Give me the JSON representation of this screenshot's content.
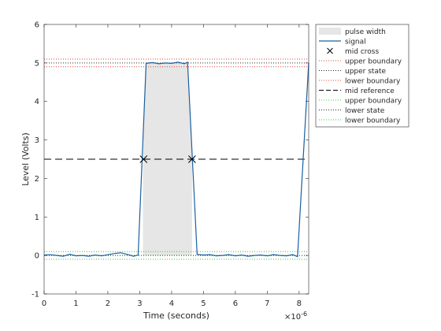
{
  "chart_data": {
    "type": "line",
    "title": "",
    "xlabel": "Time (seconds)",
    "ylabel": "Level (Volts)",
    "x_exponent_label": "×10",
    "x_exponent_power": "-6",
    "x_scale": 1e-06,
    "xlim": [
      0,
      8.3
    ],
    "ylim": [
      -1,
      6
    ],
    "xticks": [
      0,
      1,
      2,
      3,
      4,
      5,
      6,
      7,
      8
    ],
    "yticks": [
      -1,
      0,
      1,
      2,
      3,
      4,
      5,
      6
    ],
    "grid": false,
    "legend_position": "outside-top-right",
    "colors": {
      "signal": "#1a5fa0",
      "pulse_fill": "#e6e6e6",
      "upper_boundary": "#e8423c",
      "state": "#262626",
      "lower_boundary": "#3cc43c",
      "mid_reference": "#000000",
      "mid_cross": "#000000"
    },
    "pulse_width": {
      "x_start": 3.1,
      "x_end": 4.64
    },
    "levels": {
      "upper_state": 5.0,
      "upper_state_upper_boundary": 5.1,
      "upper_state_lower_boundary": 4.9,
      "mid_reference": 2.5,
      "lower_state": 0.0,
      "lower_state_upper_boundary": 0.1,
      "lower_state_lower_boundary": -0.1
    },
    "mid_crosses": [
      {
        "x": 3.12,
        "y": 2.5
      },
      {
        "x": 4.64,
        "y": 2.5
      }
    ],
    "signal": {
      "x": [
        0,
        0.2,
        0.4,
        0.6,
        0.8,
        1.0,
        1.2,
        1.4,
        1.6,
        1.8,
        2.0,
        2.2,
        2.4,
        2.6,
        2.8,
        2.95,
        3.2,
        3.4,
        3.6,
        3.8,
        4.0,
        4.2,
        4.4,
        4.5,
        4.8,
        5.0,
        5.2,
        5.4,
        5.6,
        5.8,
        6.0,
        6.2,
        6.4,
        6.6,
        6.8,
        7.0,
        7.2,
        7.4,
        7.6,
        7.8,
        7.95,
        8.3
      ],
      "y": [
        0.01,
        0.02,
        0.0,
        -0.02,
        0.03,
        -0.01,
        0.0,
        -0.02,
        0.01,
        -0.01,
        0.02,
        0.05,
        0.07,
        0.03,
        -0.02,
        0.01,
        4.99,
        5.01,
        4.98,
        5.0,
        4.99,
        5.02,
        4.98,
        5.02,
        0.03,
        0.01,
        0.02,
        -0.01,
        0.0,
        0.02,
        -0.01,
        0.01,
        -0.02,
        0.0,
        0.01,
        -0.01,
        0.02,
        0.0,
        -0.01,
        0.02,
        -0.03,
        5.0
      ]
    },
    "legend": [
      {
        "key": "pulse_width",
        "label": "pulse width",
        "symbol": "patch"
      },
      {
        "key": "signal",
        "label": "signal",
        "symbol": "line"
      },
      {
        "key": "mid_cross",
        "label": "mid cross",
        "symbol": "x-marker"
      },
      {
        "key": "upper_boundary",
        "label": "upper boundary",
        "symbol": "dotted"
      },
      {
        "key": "state",
        "label": "upper state",
        "symbol": "dotted"
      },
      {
        "key": "upper_boundary",
        "label": "lower boundary",
        "symbol": "dotted"
      },
      {
        "key": "mid_reference",
        "label": "mid reference",
        "symbol": "dashed"
      },
      {
        "key": "lower_boundary",
        "label": "upper boundary",
        "symbol": "dotted"
      },
      {
        "key": "state",
        "label": "lower state",
        "symbol": "dotted"
      },
      {
        "key": "lower_boundary",
        "label": "lower boundary",
        "symbol": "dotted"
      }
    ]
  }
}
